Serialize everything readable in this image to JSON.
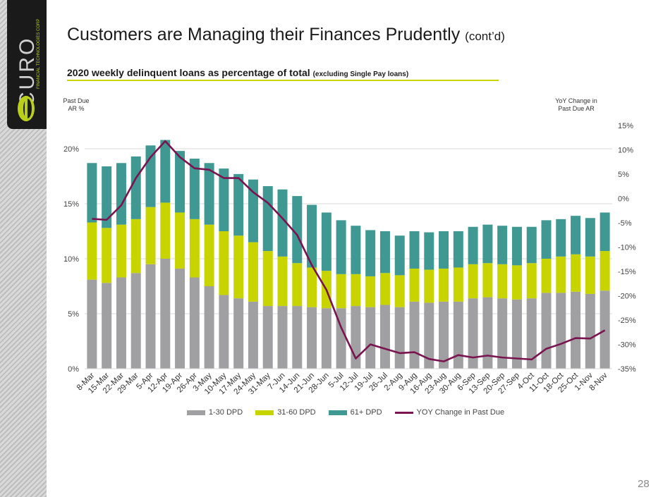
{
  "brand": {
    "logo_text": "CURO",
    "logo_subtext": "FINANCIAL TECHNOLOGIES CORP"
  },
  "title": {
    "main": "Customers are Managing their Finances Prudently",
    "suffix": "(cont’d)"
  },
  "subtitle": {
    "main": "2020 weekly delinquent loans as percentage of total",
    "note": "(excluding Single Pay loans)"
  },
  "page_number": "28",
  "colors": {
    "dpd_1_30": "#a0a0a2",
    "dpd_31_60": "#c8d400",
    "dpd_61_plus": "#3f9892",
    "yoy": "#7a1450",
    "accent_rule": "#c7d400"
  },
  "chart_data": {
    "type": "bar",
    "stacked": true,
    "left_axis_title": [
      "Past Due",
      "AR %"
    ],
    "right_axis_title": [
      "YoY Change in",
      "Past Due AR"
    ],
    "ylim": [
      0,
      20
    ],
    "y_ticks": [
      "0%",
      "5%",
      "10%",
      "15%",
      "20%"
    ],
    "y2lim": [
      -35,
      15
    ],
    "y2_ticks": [
      "-35%",
      "-30%",
      "-25%",
      "-20%",
      "-15%",
      "-10%",
      "-5%",
      "0%",
      "5%",
      "10%",
      "15%"
    ],
    "grid": true,
    "legend_position": "bottom",
    "categories": [
      "8-Mar",
      "15-Mar",
      "22-Mar",
      "29-Mar",
      "5-Apr",
      "12-Apr",
      "19-Apr",
      "26-Apr",
      "3-May",
      "10-May",
      "17-May",
      "24-May",
      "31-May",
      "7-Jun",
      "14-Jun",
      "21-Jun",
      "28-Jun",
      "5-Jul",
      "12-Jul",
      "19-Jul",
      "26-Jul",
      "2-Aug",
      "9-Aug",
      "16-Aug",
      "23-Aug",
      "30-Aug",
      "6-Sep",
      "13-Sep",
      "20-Sep",
      "27-Sep",
      "4-Oct",
      "11-Oct",
      "18-Oct",
      "25-Oct",
      "1-Nov",
      "8-Nov"
    ],
    "series": [
      {
        "name": "1-30 DPD",
        "type": "bar",
        "axis": "left",
        "values": [
          8.1,
          7.8,
          8.3,
          8.7,
          9.5,
          10.0,
          9.1,
          8.3,
          7.5,
          6.7,
          6.4,
          6.1,
          5.7,
          5.7,
          5.7,
          5.6,
          5.5,
          5.5,
          5.7,
          5.6,
          5.8,
          5.6,
          6.1,
          6.0,
          6.1,
          6.1,
          6.4,
          6.5,
          6.4,
          6.3,
          6.4,
          6.9,
          6.9,
          7.0,
          6.8,
          7.1
        ]
      },
      {
        "name": "31-60 DPD",
        "type": "bar",
        "axis": "left",
        "values": [
          5.2,
          5.0,
          4.8,
          4.9,
          5.2,
          5.1,
          5.1,
          5.3,
          5.6,
          5.8,
          5.7,
          5.4,
          5.0,
          4.5,
          3.9,
          3.6,
          3.4,
          3.1,
          2.9,
          2.8,
          2.9,
          2.9,
          3.0,
          3.0,
          3.0,
          3.1,
          3.1,
          3.1,
          3.1,
          3.1,
          3.2,
          3.1,
          3.3,
          3.4,
          3.4,
          3.6
        ]
      },
      {
        "name": "61+ DPD",
        "type": "bar",
        "axis": "left",
        "values": [
          5.4,
          5.6,
          5.6,
          5.7,
          5.6,
          5.7,
          5.6,
          5.5,
          5.6,
          5.7,
          5.6,
          5.7,
          5.9,
          6.1,
          6.1,
          5.7,
          5.3,
          4.9,
          4.4,
          4.2,
          3.8,
          3.6,
          3.4,
          3.4,
          3.4,
          3.3,
          3.4,
          3.5,
          3.5,
          3.5,
          3.3,
          3.5,
          3.4,
          3.5,
          3.5,
          3.5
        ]
      },
      {
        "name": "YOY Change in Past Due",
        "type": "line",
        "axis": "right",
        "values": [
          -4.2,
          -4.4,
          -1.4,
          4.2,
          8.5,
          11.8,
          8.5,
          6.2,
          5.9,
          4.2,
          4.2,
          1.3,
          -0.9,
          -4.1,
          -7.5,
          -13.7,
          -18.8,
          -26.5,
          -32.9,
          -30.0,
          -30.9,
          -31.8,
          -31.6,
          -33.0,
          -33.5,
          -32.2,
          -32.7,
          -32.3,
          -32.7,
          -32.9,
          -33.1,
          -30.9,
          -29.9,
          -28.7,
          -28.8,
          -27.1
        ]
      }
    ]
  }
}
